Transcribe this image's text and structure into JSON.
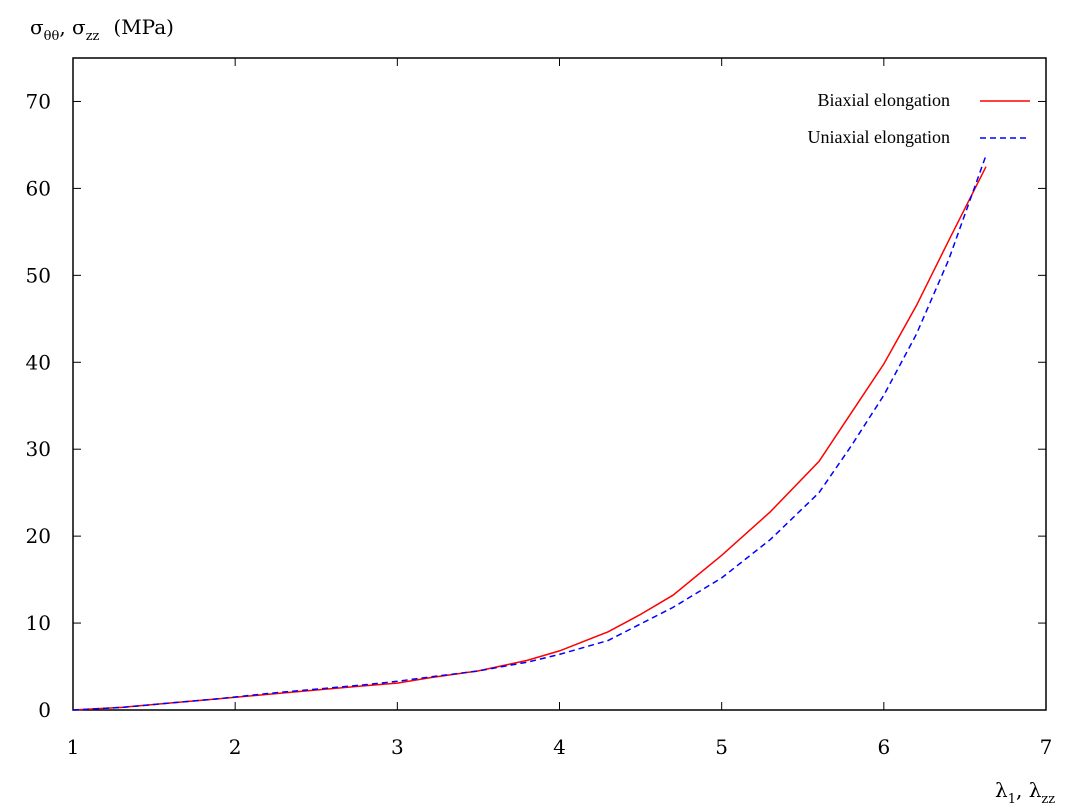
{
  "chart_data": {
    "type": "line",
    "title": "",
    "ylabel": {
      "main": "σ",
      "sub1": "θθ",
      "sep": ", ",
      "main2": "σ",
      "sub2": "zz",
      "unit": "(MPa)"
    },
    "xlabel": {
      "main": "λ",
      "sub1": "1",
      "sep": ", ",
      "main2": "λ",
      "sub2": "zz"
    },
    "xlim": [
      1,
      7
    ],
    "ylim": [
      0,
      75
    ],
    "xticks": [
      1,
      2,
      3,
      4,
      5,
      6,
      7
    ],
    "yticks": [
      0,
      10,
      20,
      30,
      40,
      50,
      60,
      70
    ],
    "grid": false,
    "legend_position": "top-right",
    "series": [
      {
        "name": "Biaxial elongation",
        "color": "#ff0000",
        "style": "solid",
        "x": [
          1.0,
          1.3,
          1.6,
          1.9,
          2.2,
          2.5,
          2.8,
          3.0,
          3.2,
          3.5,
          3.8,
          4.0,
          4.3,
          4.5,
          4.7,
          5.0,
          5.3,
          5.6,
          5.8,
          6.0,
          6.2,
          6.4,
          6.63
        ],
        "y": [
          0.0,
          0.3,
          0.8,
          1.3,
          1.8,
          2.3,
          2.8,
          3.1,
          3.7,
          4.5,
          5.7,
          6.8,
          9.0,
          11.0,
          13.2,
          17.8,
          22.8,
          28.6,
          34.2,
          39.8,
          46.5,
          54.0,
          62.5
        ]
      },
      {
        "name": "Uniaxial elongation",
        "color": "#0000ff",
        "style": "dashed",
        "x": [
          1.0,
          1.3,
          1.6,
          1.9,
          2.2,
          2.5,
          2.8,
          3.0,
          3.2,
          3.5,
          3.8,
          4.0,
          4.3,
          4.5,
          4.7,
          5.0,
          5.3,
          5.6,
          5.8,
          6.0,
          6.2,
          6.4,
          6.63
        ],
        "y": [
          0.0,
          0.3,
          0.8,
          1.3,
          1.9,
          2.4,
          2.9,
          3.3,
          3.8,
          4.5,
          5.5,
          6.4,
          8.0,
          9.9,
          11.8,
          15.2,
          19.6,
          25.0,
          30.4,
          36.2,
          43.2,
          51.8,
          63.8
        ]
      }
    ]
  }
}
